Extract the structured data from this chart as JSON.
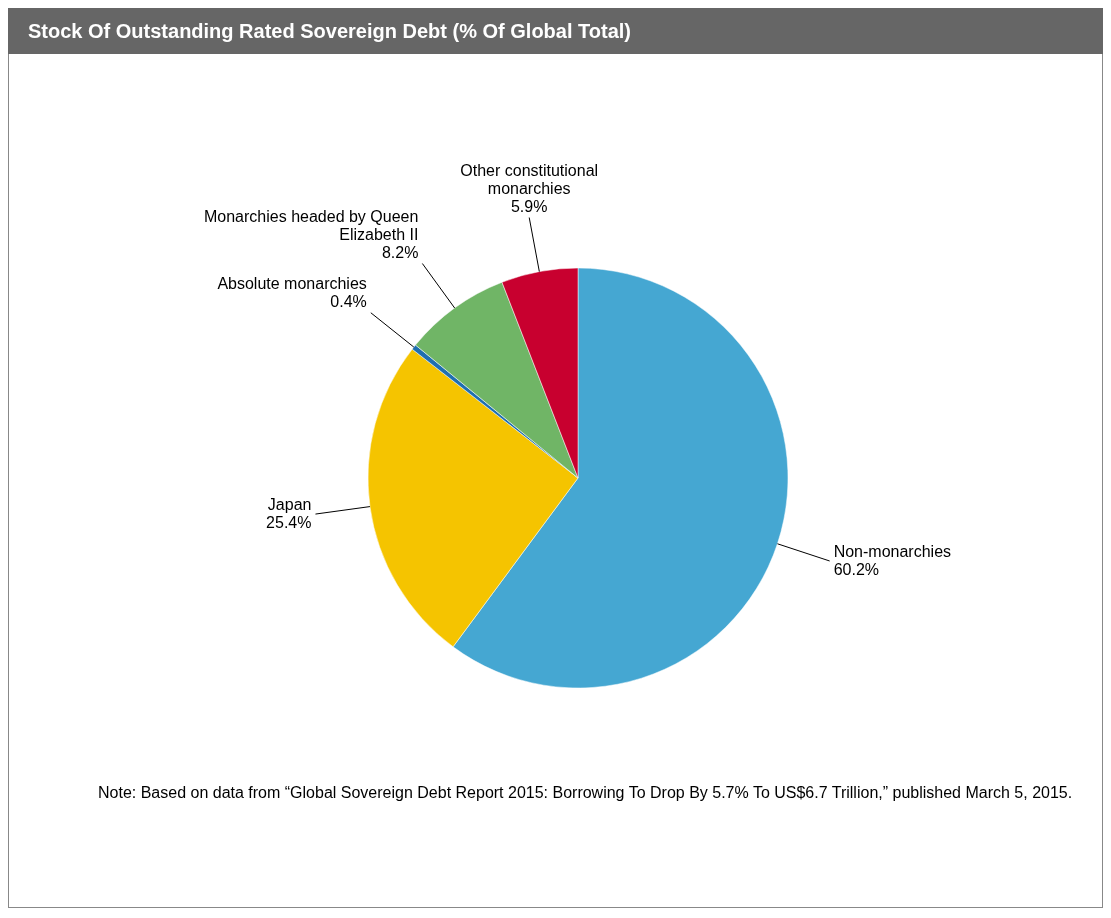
{
  "chart_data": {
    "type": "pie",
    "title": "Stock Of Outstanding Rated Sovereign Debt (% Of Global Total)",
    "categories": [
      "Non-monarchies",
      "Japan",
      "Absolute monarchies",
      "Monarchies headed by Queen Elizabeth II",
      "Other constitutional monarchies"
    ],
    "values": [
      60.2,
      25.4,
      0.4,
      8.2,
      5.9
    ],
    "value_labels": [
      "60.2%",
      "25.4%",
      "0.4%",
      "8.2%",
      "5.9%"
    ],
    "colors": [
      "#45a7d2",
      "#f5c400",
      "#1f6fb0",
      "#70b566",
      "#c8002f"
    ],
    "legend": false,
    "annotations": [
      "Note: Based on data from “Global Sovereign Debt Report 2015: Borrowing To Drop By 5.7% To US$6.7 Trillion,” published March 5, 2015."
    ]
  }
}
